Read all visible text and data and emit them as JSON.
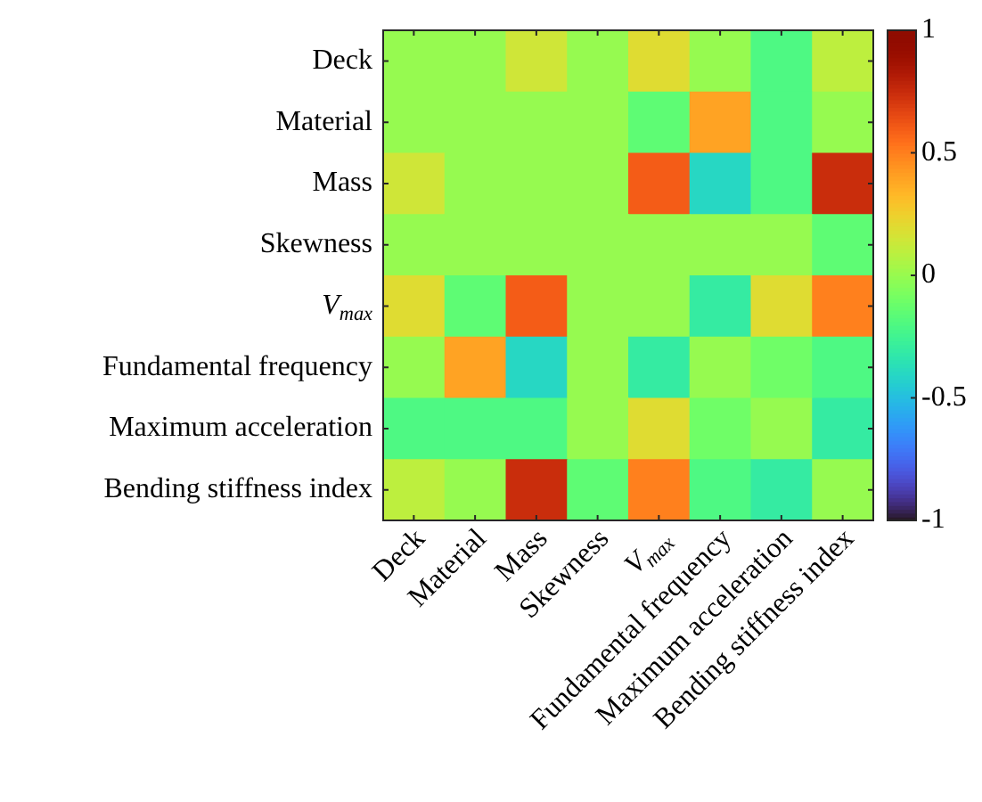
{
  "chart_data": {
    "type": "heatmap",
    "categories": [
      "Deck",
      "Material",
      "Mass",
      "Skewness",
      "V$_{max}$",
      "Fundamental frequency",
      "Maximum acceleration",
      "Bending stiffness index"
    ],
    "y_categories": [
      "Deck",
      "Material",
      "Mass",
      "Skewness",
      "V$_{max}$",
      "Fundamental frequency",
      "Maximum acceleration",
      "Bending stiffness index"
    ],
    "cells": [
      [
        0,
        0,
        0.15,
        0,
        0.2,
        0,
        -0.2,
        0.1
      ],
      [
        0,
        0,
        0,
        0,
        -0.15,
        0.4,
        -0.2,
        0
      ],
      [
        0.15,
        0,
        0,
        0,
        0.6,
        -0.4,
        -0.2,
        0.75
      ],
      [
        0,
        0,
        0,
        0,
        0,
        0,
        0,
        -0.15
      ],
      [
        0.2,
        -0.15,
        0.6,
        0,
        0,
        -0.3,
        0.2,
        0.5
      ],
      [
        0,
        0.4,
        -0.4,
        0,
        -0.3,
        0,
        -0.1,
        -0.2
      ],
      [
        -0.2,
        -0.2,
        -0.2,
        0,
        0.2,
        -0.1,
        0,
        -0.3
      ],
      [
        0.1,
        0,
        0.75,
        -0.15,
        0.5,
        -0.2,
        -0.3,
        0
      ]
    ],
    "clim": [
      -1,
      1
    ],
    "cticks": [
      -1,
      -0.5,
      0,
      0.5,
      1
    ]
  }
}
